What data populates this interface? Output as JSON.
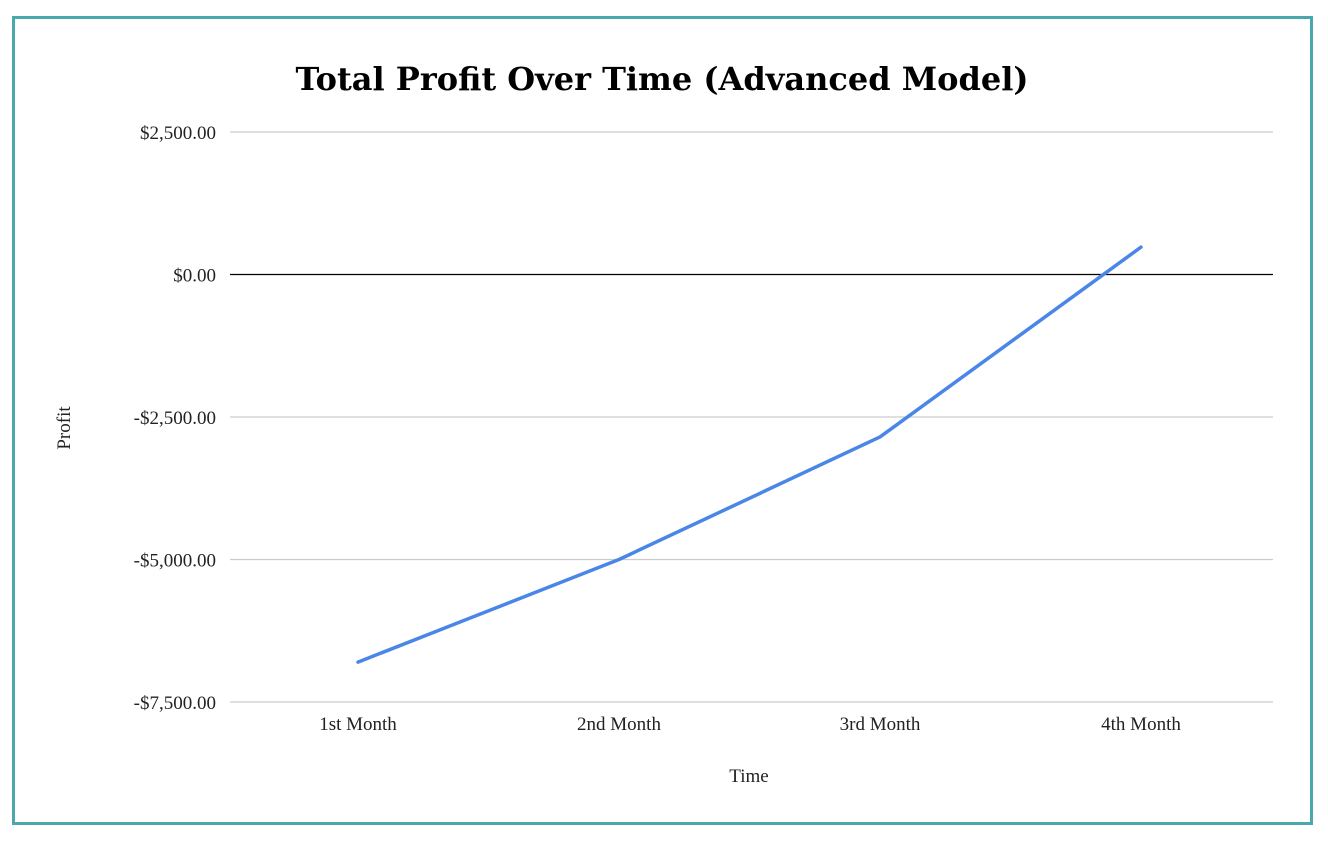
{
  "chart_data": {
    "type": "line",
    "title": "Total Profit Over Time (Advanced Model)",
    "xlabel": "Time",
    "ylabel": "Profit",
    "categories": [
      "1st Month",
      "2nd Month",
      "3rd Month",
      "4th Month"
    ],
    "series": [
      {
        "values": [
          -6800,
          -5000,
          -2850,
          480
        ],
        "color": "#4a86e8"
      }
    ],
    "ylim": [
      -7500,
      2500
    ],
    "yticks": [
      2500,
      0,
      -2500,
      -5000,
      -7500
    ],
    "ytick_labels": [
      "$2,500.00",
      "$0.00",
      "-$2,500.00",
      "-$5,000.00",
      "-$7,500.00"
    ],
    "grid": true,
    "legend": "none",
    "colors": {
      "border": "#4aa8ac",
      "gridline": "#cccccc",
      "zero_line": "#000000",
      "line": "#4a86e8"
    }
  }
}
